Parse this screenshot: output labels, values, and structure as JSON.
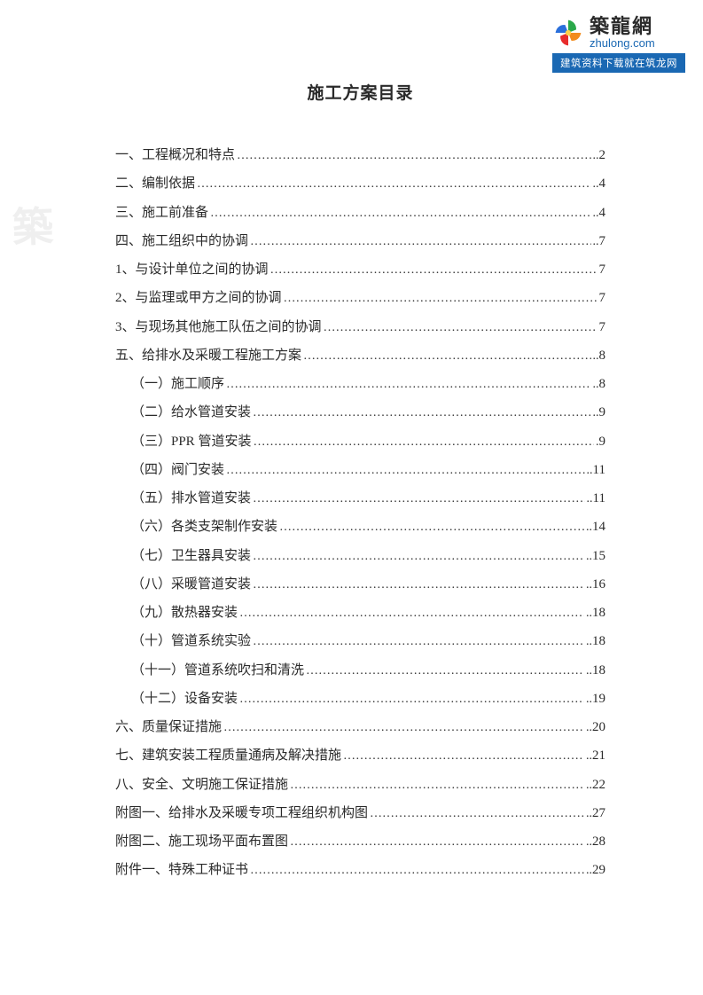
{
  "logo": {
    "cn": "築龍網",
    "en": "zhulong.com",
    "bar": "建筑资料下载就在筑龙网",
    "petal_colors": [
      "#2aa84a",
      "#f28c1e",
      "#e82c2c",
      "#2a6fdb"
    ],
    "center_color": "#ffd24a"
  },
  "title": "施工方案目录",
  "toc": [
    {
      "label": "一、工程概况和特点",
      "page": "2",
      "prefix": "..",
      "indent": 0
    },
    {
      "label": "二、编制依据",
      "page": "4",
      "prefix": "..",
      "indent": 0
    },
    {
      "label": "三、施工前准备",
      "page": "4",
      "prefix": "..",
      "indent": 0
    },
    {
      "label": "四、施工组织中的协调",
      "page": "7",
      "prefix": "..",
      "indent": 0
    },
    {
      "label": "1、与设计单位之间的协调",
      "page": "7",
      "prefix": "",
      "indent": 0
    },
    {
      "label": "2、与监理或甲方之间的协调",
      "page": "7",
      "prefix": "",
      "indent": 0
    },
    {
      "label": "3、与现场其他施工队伍之间的协调",
      "page": "7",
      "prefix": "",
      "indent": 0
    },
    {
      "label": "五、给排水及采暖工程施工方案",
      "page": "8",
      "prefix": "..",
      "indent": 0
    },
    {
      "label": "（一）施工顺序",
      "page": "8",
      "prefix": "..",
      "indent": 1
    },
    {
      "label": "（二）给水管道安装",
      "page": "9",
      "prefix": "..",
      "indent": 1
    },
    {
      "label": "（三）PPR 管道安装",
      "page": "9",
      "prefix": ". ",
      "indent": 1
    },
    {
      "label": "（四）阀门安装",
      "page": "11",
      "prefix": "..",
      "indent": 1
    },
    {
      "label": "（五）排水管道安装",
      "page": "11",
      "prefix": "..",
      "indent": 1
    },
    {
      "label": "（六）各类支架制作安装",
      "page": "14",
      "prefix": "..",
      "indent": 1
    },
    {
      "label": "（七）卫生器具安装",
      "page": "15",
      "prefix": "..",
      "indent": 1
    },
    {
      "label": "（八）采暖管道安装",
      "page": "16",
      "prefix": "..",
      "indent": 1
    },
    {
      "label": "（九）散热器安装",
      "page": "18",
      "prefix": "..",
      "indent": 1
    },
    {
      "label": "（十）管道系统实验",
      "page": "18",
      "prefix": "..",
      "indent": 1
    },
    {
      "label": "（十一）管道系统吹扫和清洗",
      "page": "18",
      "prefix": "..",
      "indent": 1
    },
    {
      "label": "（十二）设备安装",
      "page": "19",
      "prefix": "..",
      "indent": 1
    },
    {
      "label": "六、质量保证措施",
      "page": "20",
      "prefix": "..",
      "indent": 0
    },
    {
      "label": "七、建筑安装工程质量通病及解决措施",
      "page": "21",
      "prefix": "..",
      "indent": 0
    },
    {
      "label": "八、安全、文明施工保证措施",
      "page": "22",
      "prefix": "..",
      "indent": 0
    },
    {
      "label": "附图一、给排水及采暖专项工程组织机构图",
      "page": "27",
      "prefix": "..",
      "indent": 0
    },
    {
      "label": "附图二、施工现场平面布置图",
      "page": "28",
      "prefix": "..",
      "indent": 0
    },
    {
      "label": "附件一、特殊工种证书",
      "page": "29",
      "prefix": "..",
      "indent": 0
    }
  ],
  "watermark_corner": "築"
}
